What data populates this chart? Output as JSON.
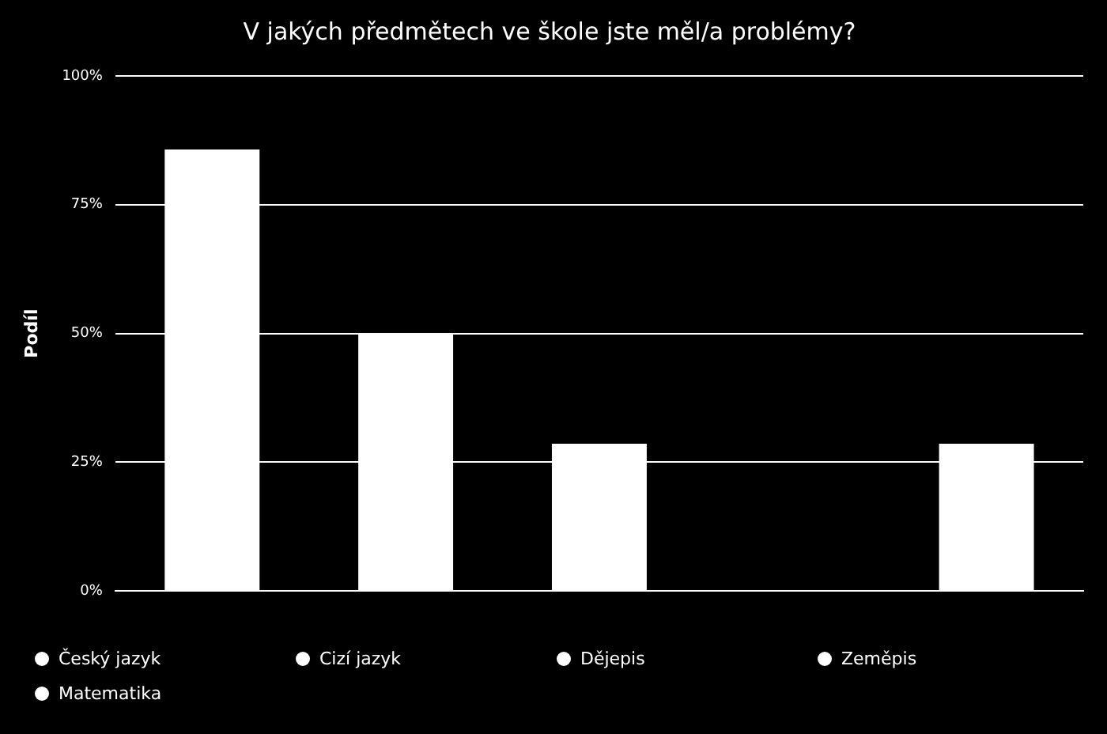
{
  "chart_data": {
    "type": "bar",
    "title": "V jakých předmětech ve škole jste měl/a problémy?",
    "ylabel": "Podíl",
    "categories": [
      null,
      null,
      null,
      null,
      null
    ],
    "series": [
      {
        "name": "Český jazyk",
        "color": "#ffffff",
        "values": [
          85.7,
          null,
          null,
          null,
          null
        ]
      },
      {
        "name": "Cizí jazyk",
        "color": "#ffffff",
        "values": [
          null,
          50,
          null,
          null,
          null
        ]
      },
      {
        "name": "Dějepis",
        "color": "#ffffff",
        "values": [
          null,
          null,
          28.6,
          null,
          null
        ]
      },
      {
        "name": "Zeměpis",
        "color": "#ffffff",
        "values": [
          null,
          null,
          null,
          0,
          null
        ]
      },
      {
        "name": "Matematika",
        "color": "#ffffff",
        "values": [
          null,
          null,
          null,
          null,
          28.6
        ]
      }
    ],
    "ylim": [
      0,
      100
    ],
    "yticks": [
      {
        "value": 0,
        "label": "0%"
      },
      {
        "value": 25,
        "label": "25%"
      },
      {
        "value": 50,
        "label": "50%"
      },
      {
        "value": 75,
        "label": "75%"
      },
      {
        "value": 100,
        "label": "100%"
      }
    ],
    "grid": "y",
    "legend": "bottom"
  }
}
